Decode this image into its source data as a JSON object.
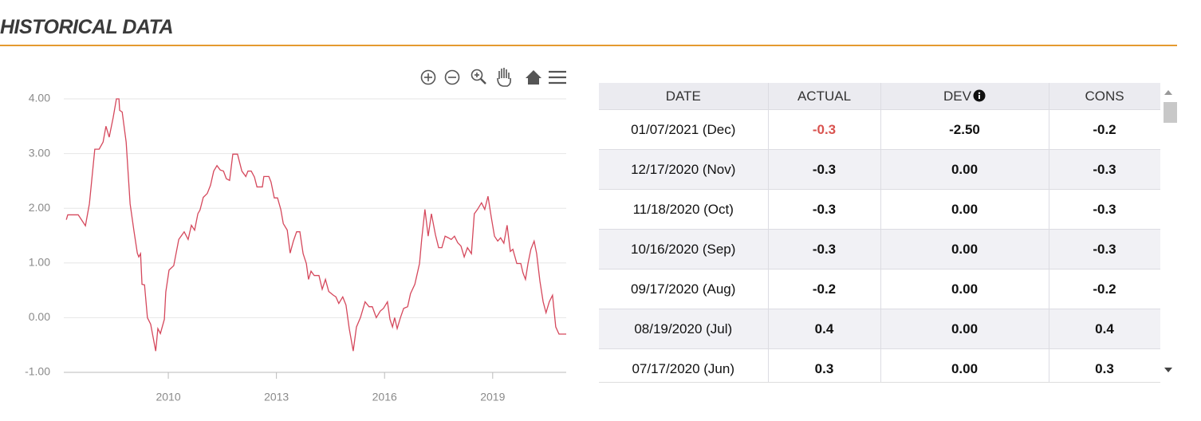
{
  "header": {
    "title": "HISTORICAL DATA"
  },
  "chart_data": {
    "type": "line",
    "color": "#d5485c",
    "grid": true,
    "xlim": [
      2007.1,
      2021.04
    ],
    "xticks": [
      2010,
      2013,
      2016,
      2019
    ],
    "ylim": [
      -1,
      4
    ],
    "yticks": [
      {
        "value": -1,
        "label": "-1.00"
      },
      {
        "value": 0,
        "label": "0.00"
      },
      {
        "value": 1,
        "label": "1.00"
      },
      {
        "value": 2,
        "label": "2.00"
      },
      {
        "value": 3,
        "label": "3.00"
      },
      {
        "value": 4,
        "label": "4.00"
      }
    ],
    "x": [
      2007.17,
      2007.21,
      2007.5,
      2007.7,
      2007.81,
      2007.96,
      2008.08,
      2008.19,
      2008.27,
      2008.36,
      2008.47,
      2008.56,
      2008.63,
      2008.65,
      2008.72,
      2008.83,
      2008.94,
      2009.05,
      2009.14,
      2009.18,
      2009.23,
      2009.27,
      2009.34,
      2009.42,
      2009.51,
      2009.65,
      2009.71,
      2009.78,
      2009.89,
      2009.93,
      2010.02,
      2010.15,
      2010.29,
      2010.44,
      2010.55,
      2010.64,
      2010.73,
      2010.82,
      2010.88,
      2010.97,
      2011.08,
      2011.17,
      2011.26,
      2011.35,
      2011.44,
      2011.53,
      2011.61,
      2011.7,
      2011.79,
      2011.92,
      2012.04,
      2012.15,
      2012.21,
      2012.3,
      2012.39,
      2012.46,
      2012.61,
      2012.65,
      2012.79,
      2012.85,
      2012.94,
      2013.03,
      2013.12,
      2013.19,
      2013.3,
      2013.38,
      2013.47,
      2013.56,
      2013.65,
      2013.74,
      2013.83,
      2013.89,
      2013.96,
      2014.05,
      2014.18,
      2014.27,
      2014.36,
      2014.45,
      2014.58,
      2014.65,
      2014.73,
      2014.84,
      2014.93,
      2015.02,
      2015.13,
      2015.22,
      2015.33,
      2015.46,
      2015.57,
      2015.66,
      2015.77,
      2015.88,
      2015.97,
      2016.08,
      2016.15,
      2016.22,
      2016.28,
      2016.35,
      2016.44,
      2016.53,
      2016.64,
      2016.72,
      2016.84,
      2016.97,
      2017.03,
      2017.12,
      2017.21,
      2017.3,
      2017.41,
      2017.5,
      2017.59,
      2017.68,
      2017.77,
      2017.85,
      2017.94,
      2018.03,
      2018.12,
      2018.21,
      2018.3,
      2018.41,
      2018.49,
      2018.58,
      2018.69,
      2018.78,
      2018.87,
      2018.96,
      2019.05,
      2019.14,
      2019.22,
      2019.31,
      2019.4,
      2019.49,
      2019.56,
      2019.67,
      2019.78,
      2019.84,
      2019.91,
      2019.98,
      2020.06,
      2020.15,
      2020.22,
      2020.31,
      2020.4,
      2020.48,
      2020.57,
      2020.66,
      2020.75,
      2020.84,
      2021.04
    ],
    "values": [
      1.79,
      1.88,
      1.88,
      1.68,
      2.08,
      3.08,
      3.08,
      3.21,
      3.5,
      3.3,
      3.66,
      4.0,
      4.0,
      3.79,
      3.76,
      3.21,
      2.08,
      1.57,
      1.18,
      1.11,
      1.17,
      0.61,
      0.6,
      0.0,
      -0.12,
      -0.61,
      -0.2,
      -0.29,
      -0.03,
      0.47,
      0.87,
      0.95,
      1.43,
      1.57,
      1.43,
      1.69,
      1.6,
      1.9,
      1.97,
      2.2,
      2.27,
      2.42,
      2.68,
      2.78,
      2.7,
      2.68,
      2.54,
      2.51,
      2.99,
      2.99,
      2.68,
      2.58,
      2.68,
      2.68,
      2.57,
      2.39,
      2.39,
      2.58,
      2.58,
      2.48,
      2.19,
      2.19,
      1.98,
      1.72,
      1.6,
      1.18,
      1.4,
      1.57,
      1.57,
      1.17,
      0.99,
      0.7,
      0.85,
      0.77,
      0.77,
      0.52,
      0.7,
      0.48,
      0.41,
      0.38,
      0.26,
      0.38,
      0.23,
      -0.2,
      -0.61,
      -0.17,
      0.0,
      0.29,
      0.2,
      0.2,
      0.0,
      0.12,
      0.17,
      0.29,
      -0.03,
      -0.17,
      0.0,
      -0.2,
      0.0,
      0.17,
      0.2,
      0.44,
      0.61,
      0.99,
      1.43,
      1.98,
      1.49,
      1.9,
      1.52,
      1.28,
      1.28,
      1.49,
      1.46,
      1.43,
      1.49,
      1.37,
      1.31,
      1.11,
      1.28,
      1.17,
      1.9,
      1.98,
      2.1,
      1.98,
      2.22,
      1.84,
      1.49,
      1.4,
      1.46,
      1.36,
      1.69,
      1.21,
      1.25,
      0.99,
      0.99,
      0.82,
      0.7,
      0.99,
      1.25,
      1.4,
      1.17,
      0.67,
      0.29,
      0.09,
      0.29,
      0.41,
      -0.17,
      -0.3,
      -0.3
    ]
  },
  "table": {
    "columns": [
      "DATE",
      "ACTUAL",
      "DEV",
      "CONS"
    ],
    "rows": [
      [
        "01/07/2021 (Dec)",
        "-0.3",
        "-2.50",
        "-0.2"
      ],
      [
        "12/17/2020 (Nov)",
        "-0.3",
        "0.00",
        "-0.3"
      ],
      [
        "11/18/2020 (Oct)",
        "-0.3",
        "0.00",
        "-0.3"
      ],
      [
        "10/16/2020 (Sep)",
        "-0.3",
        "0.00",
        "-0.3"
      ],
      [
        "09/17/2020 (Aug)",
        "-0.2",
        "0.00",
        "-0.2"
      ],
      [
        "08/19/2020 (Jul)",
        "0.4",
        "0.00",
        "0.4"
      ],
      [
        "07/17/2020 (Jun)",
        "0.3",
        "0.00",
        "0.3"
      ]
    ]
  }
}
